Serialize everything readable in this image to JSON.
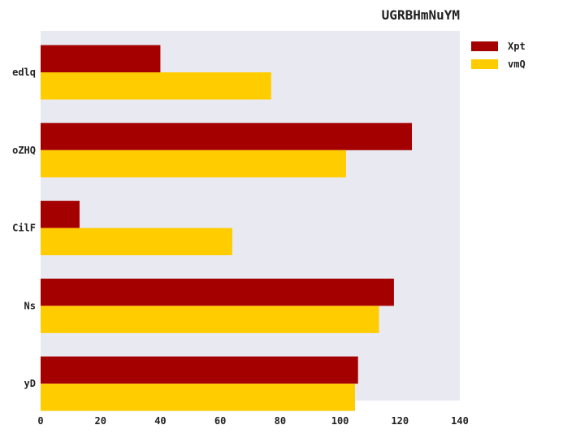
{
  "chart_data": {
    "type": "bar",
    "orientation": "horizontal",
    "title": "UGRBHmNuYM",
    "xlabel": "",
    "ylabel": "",
    "xlim": [
      0,
      140
    ],
    "xticks": [
      0,
      20,
      40,
      60,
      80,
      100,
      120,
      140
    ],
    "categories": [
      "edlq",
      "oZHQ",
      "CilF",
      "Ns",
      "yD"
    ],
    "series": [
      {
        "name": "Xpt",
        "color": "#a50000",
        "values": [
          40,
          124,
          13,
          118,
          106
        ]
      },
      {
        "name": "vmQ",
        "color": "#ffcc00",
        "values": [
          77,
          102,
          64,
          113,
          105
        ]
      }
    ],
    "plot_background": "#e9e9f2",
    "grid": false,
    "legend_position": "outside-top-right"
  }
}
